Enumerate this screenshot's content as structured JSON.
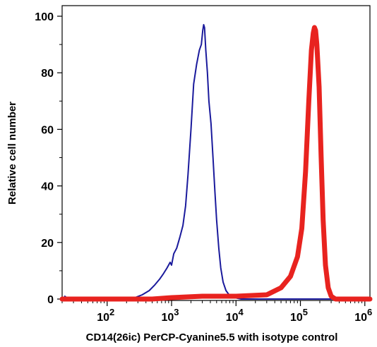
{
  "chart_data": {
    "type": "line",
    "xlabel": "CD14(26ic) PerCP-Cyanine5.5 with isotype control",
    "ylabel": "Relative cell number",
    "x_scale": "log",
    "xlim": [
      20,
      1200000
    ],
    "ylim": [
      0,
      105
    ],
    "x_ticks": [
      {
        "value": 100,
        "base": "10",
        "exp": "2"
      },
      {
        "value": 1000,
        "base": "10",
        "exp": "3"
      },
      {
        "value": 10000,
        "base": "10",
        "exp": "4"
      },
      {
        "value": 100000,
        "base": "10",
        "exp": "5"
      },
      {
        "value": 1000000,
        "base": "10",
        "exp": "6"
      }
    ],
    "y_ticks": [
      0,
      20,
      40,
      60,
      80,
      100
    ],
    "grid": false,
    "legend": "none",
    "series": [
      {
        "color": "#1a1a9c",
        "stroke": "thin",
        "points": [
          [
            22,
            1
          ],
          [
            25,
            0
          ],
          [
            50,
            0
          ],
          [
            150,
            0
          ],
          [
            250,
            0.2
          ],
          [
            350,
            1.5
          ],
          [
            450,
            3
          ],
          [
            550,
            5
          ],
          [
            650,
            7
          ],
          [
            750,
            9
          ],
          [
            850,
            11
          ],
          [
            950,
            13
          ],
          [
            1000,
            12
          ],
          [
            1080,
            16
          ],
          [
            1200,
            18
          ],
          [
            1350,
            22
          ],
          [
            1500,
            26
          ],
          [
            1650,
            33
          ],
          [
            1800,
            44
          ],
          [
            2000,
            60
          ],
          [
            2200,
            76
          ],
          [
            2450,
            83
          ],
          [
            2700,
            88
          ],
          [
            2900,
            90
          ],
          [
            3050,
            95
          ],
          [
            3150,
            97
          ],
          [
            3250,
            96
          ],
          [
            3400,
            88
          ],
          [
            3600,
            80
          ],
          [
            3800,
            70
          ],
          [
            4100,
            62
          ],
          [
            4400,
            50
          ],
          [
            4700,
            38
          ],
          [
            5000,
            28
          ],
          [
            5400,
            18
          ],
          [
            5800,
            11
          ],
          [
            6300,
            6
          ],
          [
            7000,
            3
          ],
          [
            8000,
            1.2
          ],
          [
            9500,
            0.5
          ],
          [
            12000,
            0
          ],
          [
            100000,
            0
          ],
          [
            1200000,
            0
          ]
        ]
      },
      {
        "color": "#e8231f",
        "stroke": "thick",
        "points": [
          [
            20,
            0
          ],
          [
            200,
            0
          ],
          [
            500,
            0
          ],
          [
            1000,
            0.5
          ],
          [
            3000,
            1
          ],
          [
            10000,
            1
          ],
          [
            30000,
            1.5
          ],
          [
            50000,
            4
          ],
          [
            70000,
            8
          ],
          [
            90000,
            15
          ],
          [
            105000,
            25
          ],
          [
            120000,
            45
          ],
          [
            135000,
            70
          ],
          [
            148000,
            88
          ],
          [
            158000,
            94
          ],
          [
            165000,
            96
          ],
          [
            172000,
            95
          ],
          [
            180000,
            90
          ],
          [
            195000,
            75
          ],
          [
            210000,
            50
          ],
          [
            225000,
            28
          ],
          [
            245000,
            12
          ],
          [
            270000,
            4
          ],
          [
            300000,
            1
          ],
          [
            350000,
            0
          ],
          [
            1200000,
            0
          ]
        ]
      }
    ]
  }
}
